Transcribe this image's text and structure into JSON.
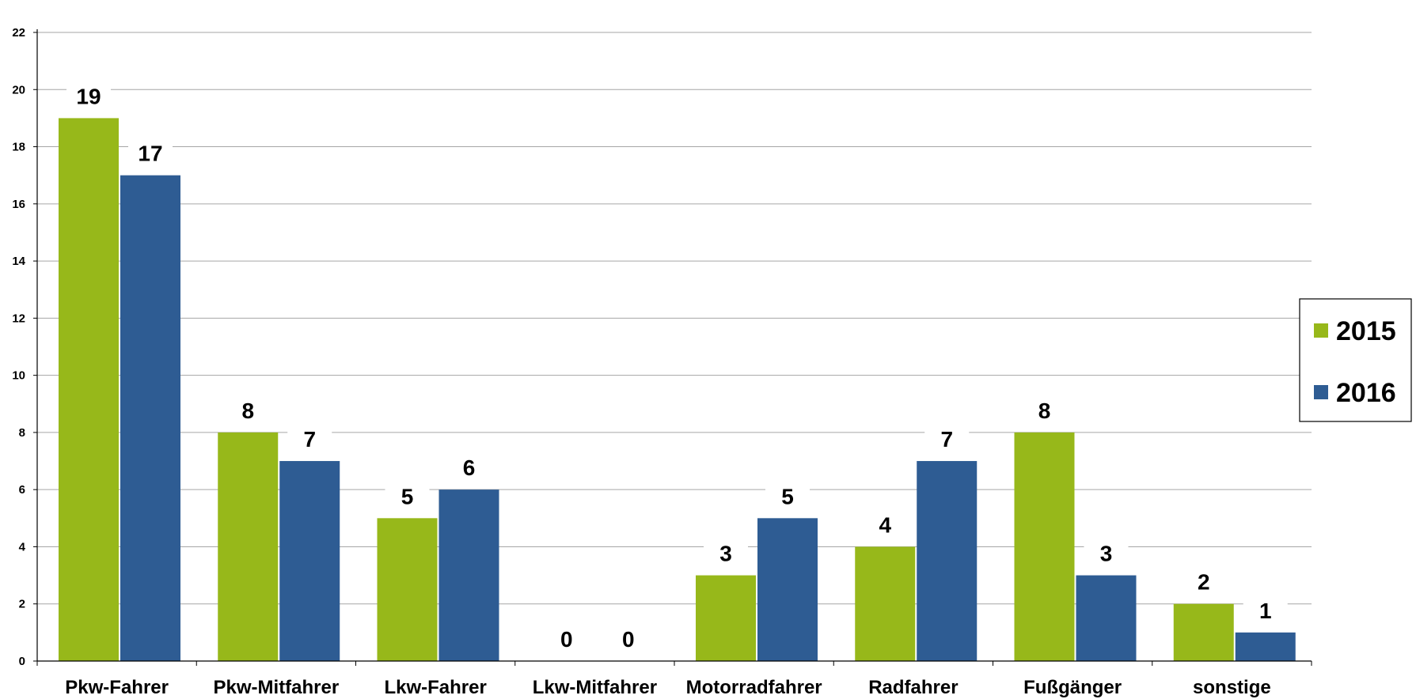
{
  "chart_data": {
    "type": "bar",
    "categories": [
      "Pkw-Fahrer",
      "Pkw-Mitfahrer",
      "Lkw-Fahrer",
      "Lkw-Mitfahrer",
      "Motorradfahrer",
      "Radfahrer",
      "Fußgänger",
      "sonstige"
    ],
    "series": [
      {
        "name": "2015",
        "color": "#97b81a",
        "values": [
          19,
          8,
          5,
          0,
          3,
          4,
          8,
          2
        ]
      },
      {
        "name": "2016",
        "color": "#2e5c93",
        "values": [
          17,
          7,
          6,
          0,
          5,
          7,
          3,
          1
        ]
      }
    ],
    "yticks": [
      "0",
      "2",
      "4",
      "6",
      "8",
      "10",
      "12",
      "14",
      "16",
      "18",
      "20",
      "22"
    ],
    "ylim": [
      0,
      22
    ],
    "grid": true,
    "data_labels": true,
    "legend_position": "right",
    "title": "",
    "xlabel": "",
    "ylabel": ""
  }
}
